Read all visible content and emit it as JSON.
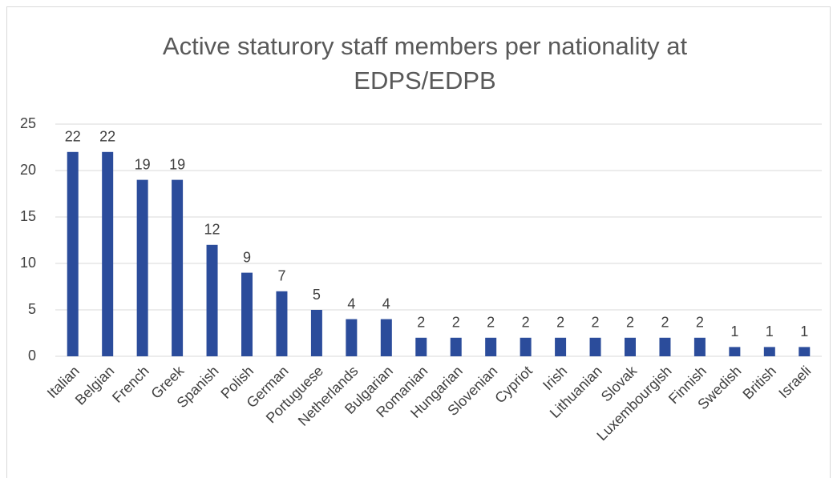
{
  "chart_data": {
    "type": "bar",
    "title": "Active staturory staff members per nationality at EDPS/EDPB",
    "categories": [
      "Italian",
      "Belgian",
      "French",
      "Greek",
      "Spanish",
      "Polish",
      "German",
      "Portuguese",
      "Netherlands",
      "Bulgarian",
      "Romanian",
      "Hungarian",
      "Slovenian",
      "Cypriot",
      "Irish",
      "Lithuanian",
      "Slovak",
      "Luxembourgish",
      "Finnish",
      "Swedish",
      "British",
      "Israeli"
    ],
    "values": [
      22,
      22,
      19,
      19,
      12,
      9,
      7,
      5,
      4,
      4,
      2,
      2,
      2,
      2,
      2,
      2,
      2,
      2,
      2,
      1,
      1,
      1
    ],
    "color": "#2b4c9b",
    "ylim": [
      0,
      25
    ],
    "yticks": [
      0,
      5,
      10,
      15,
      20,
      25
    ],
    "grid": true
  }
}
